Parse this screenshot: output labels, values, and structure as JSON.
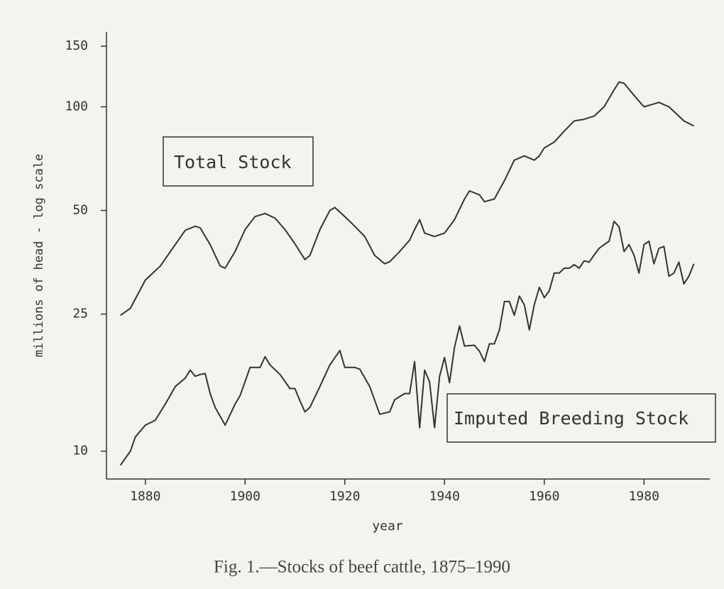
{
  "chart_data": {
    "type": "line",
    "y_label": "millions of head - log scale",
    "x_label": "year",
    "caption": "Fig. 1.—Stocks of beef cattle, 1875–1990",
    "annotations": [
      "Total Stock",
      "Imputed Breeding Stock"
    ],
    "ylog": true,
    "xlim": [
      1872.2,
      1993.2
    ],
    "ylim": [
      8.3,
      165
    ],
    "xticks": [
      1880,
      1900,
      1920,
      1940,
      1960,
      1980
    ],
    "yticks": [
      10,
      25,
      50,
      100,
      150
    ],
    "series": [
      {
        "name": "Total Stock",
        "color": "#333333",
        "x": [
          1875,
          1877,
          1880,
          1883,
          1886,
          1888,
          1890,
          1891,
          1893,
          1895,
          1896,
          1898,
          1900,
          1902,
          1904,
          1906,
          1908,
          1910,
          1912,
          1913,
          1915,
          1917,
          1918,
          1920,
          1922,
          1924,
          1926,
          1928,
          1929,
          1931,
          1933,
          1934,
          1935,
          1936,
          1938,
          1940,
          1942,
          1944,
          1945,
          1947,
          1948,
          1950,
          1952,
          1954,
          1956,
          1958,
          1959,
          1960,
          1962,
          1964,
          1966,
          1968,
          1970,
          1972,
          1974,
          1975,
          1976,
          1978,
          1980,
          1982,
          1983,
          1985,
          1987,
          1988,
          1990
        ],
        "values": [
          24.8,
          26,
          31.4,
          34.5,
          39.8,
          43.8,
          45,
          44.5,
          39.8,
          34.5,
          34,
          38,
          44,
          48,
          49,
          47.5,
          44,
          40,
          36,
          37,
          44,
          50,
          51,
          48,
          45,
          42,
          37,
          35,
          35.5,
          38,
          41,
          44,
          47,
          43,
          42,
          43,
          47,
          54,
          57,
          55.5,
          53,
          54,
          61,
          70,
          72,
          70,
          72,
          76,
          79,
          85,
          91,
          92,
          94,
          100,
          112,
          118,
          117,
          108,
          100,
          102,
          103,
          100,
          94,
          91,
          88
        ]
      },
      {
        "name": "Imputed Breeding Stock",
        "color": "#333333",
        "x": [
          1875,
          1877,
          1878,
          1880,
          1882,
          1884,
          1886,
          1888,
          1889,
          1890,
          1891,
          1892,
          1893,
          1894,
          1896,
          1898,
          1899,
          1901,
          1903,
          1904,
          1905,
          1907,
          1909,
          1910,
          1911,
          1912,
          1913,
          1915,
          1917,
          1919,
          1920,
          1922,
          1923,
          1925,
          1927,
          1929,
          1930,
          1932,
          1933,
          1934,
          1935,
          1936,
          1937,
          1938,
          1939,
          1940,
          1941,
          1942,
          1943,
          1944,
          1946,
          1947,
          1948,
          1949,
          1950,
          1951,
          1952,
          1953,
          1954,
          1955,
          1956,
          1957,
          1958,
          1959,
          1960,
          1961,
          1962,
          1963,
          1964,
          1965,
          1966,
          1967,
          1968,
          1969,
          1970,
          1971,
          1972,
          1973,
          1974,
          1975,
          1976,
          1977,
          1978,
          1979,
          1980,
          1981,
          1982,
          1983,
          1984,
          1985,
          1986,
          1987,
          1988,
          1989,
          1990
        ],
        "values": [
          9.1,
          10,
          11,
          11.9,
          12.3,
          13.7,
          15.4,
          16.3,
          17.2,
          16.5,
          16.7,
          16.8,
          14.7,
          13.4,
          11.9,
          13.7,
          14.5,
          17.5,
          17.5,
          18.8,
          17.8,
          16.7,
          15.2,
          15.2,
          14,
          13,
          13.4,
          15.4,
          17.8,
          19.6,
          17.5,
          17.5,
          17.3,
          15.4,
          12.8,
          13,
          14.1,
          14.7,
          14.7,
          18.2,
          11.7,
          17.2,
          15.9,
          11.7,
          16.5,
          18.7,
          15.8,
          20,
          23.1,
          20.2,
          20.3,
          19.5,
          18.2,
          20.5,
          20.5,
          22.5,
          27.2,
          27.2,
          24.8,
          28.2,
          26.6,
          22.5,
          26.6,
          29.9,
          27.9,
          29.2,
          32.9,
          32.9,
          34,
          34,
          34.8,
          34,
          35.7,
          35.4,
          37.1,
          38.8,
          39.8,
          40.7,
          46.5,
          44.9,
          38,
          39.8,
          37.1,
          32.9,
          39.8,
          40.7,
          35,
          38.8,
          39.3,
          32.2,
          32.9,
          35.4,
          30.6,
          32.2,
          35
        ]
      }
    ]
  }
}
